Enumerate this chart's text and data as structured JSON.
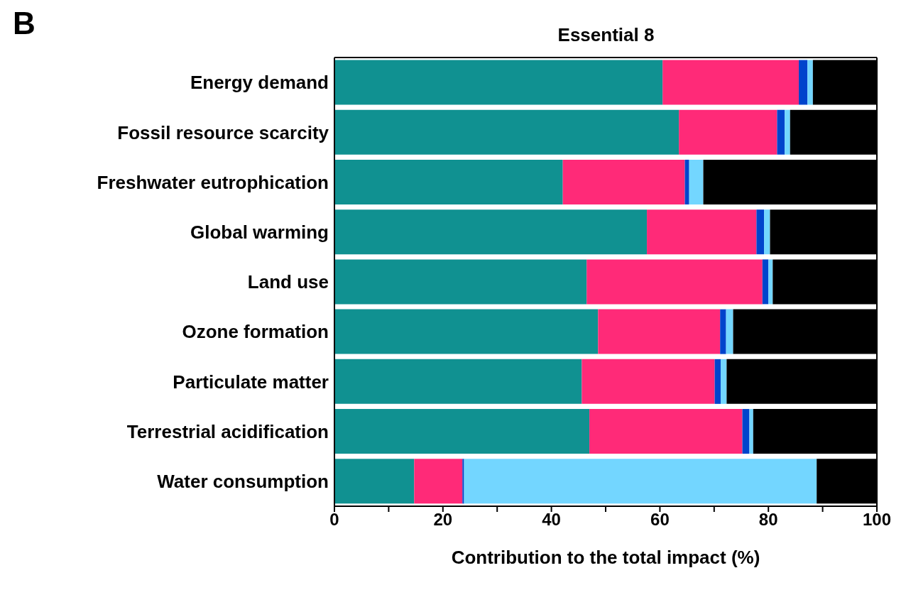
{
  "chart_data": {
    "type": "bar",
    "orientation": "horizontal",
    "stacked": true,
    "title": "Essential 8",
    "xlabel": "Contribution to the total impact (%)",
    "annotations": [
      "B"
    ],
    "categories": [
      "Energy demand",
      "Fossil resource scarcity",
      "Freshwater eutrophication",
      "Global warming",
      "Land use",
      "Ozone formation",
      "Particulate matter",
      "Terrestrial acidification",
      "Water consumption"
    ],
    "series": [
      {
        "color": "#109191",
        "values": [
          60.5,
          63.5,
          42.1,
          57.6,
          46.5,
          48.6,
          45.6,
          47.0,
          14.7
        ]
      },
      {
        "color": "#ff2a78",
        "values": [
          25.1,
          18.1,
          22.5,
          20.2,
          32.4,
          22.5,
          24.5,
          28.2,
          8.9
        ]
      },
      {
        "color": "#0044cc",
        "values": [
          1.6,
          1.4,
          0.8,
          1.4,
          1.1,
          1.1,
          1.1,
          1.3,
          0.3
        ]
      },
      {
        "color": "#73d6ff",
        "values": [
          1.0,
          1.0,
          2.6,
          1.1,
          0.8,
          1.3,
          1.1,
          0.7,
          65.0
        ]
      },
      {
        "color": "#000000",
        "values": [
          11.8,
          16.0,
          32.0,
          19.7,
          19.2,
          26.5,
          27.7,
          22.8,
          11.1
        ]
      }
    ],
    "xlim": [
      0,
      100
    ],
    "xticks": [
      0,
      {
        "value": 10,
        "label": null
      },
      20,
      {
        "value": 30,
        "label": null
      },
      40,
      {
        "value": 50,
        "label": null
      },
      60,
      {
        "value": 70,
        "label": null
      },
      80,
      {
        "value": 90,
        "label": null
      },
      100
    ],
    "grid": false,
    "legend": false
  }
}
